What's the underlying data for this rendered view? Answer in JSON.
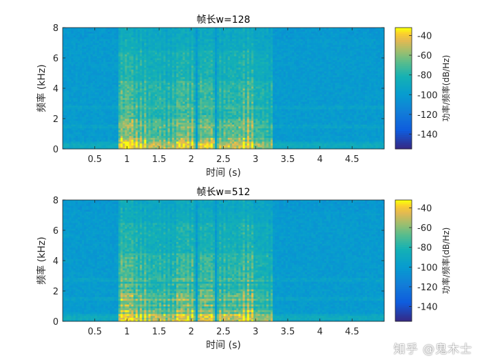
{
  "chart_data": [
    {
      "type": "heatmap",
      "title": "帧长w=128",
      "xlabel": "时间 (s)",
      "ylabel": "频率 (kHz)",
      "x_ticks": [
        "0.5",
        "1",
        "1.5",
        "2",
        "2.5",
        "3",
        "3.5",
        "4",
        "4.5"
      ],
      "x_tick_values": [
        0.5,
        1,
        1.5,
        2,
        2.5,
        3,
        3.5,
        4,
        4.5
      ],
      "y_ticks": [
        "0",
        "2",
        "4",
        "6",
        "8"
      ],
      "y_tick_values": [
        0,
        2,
        4,
        6,
        8
      ],
      "xlim": [
        0,
        5
      ],
      "ylim": [
        0,
        8
      ],
      "colorbar": {
        "label": "功率/频率(dB/Hz)",
        "ticks": [
          "-40",
          "-60",
          "-80",
          "-100",
          "-120",
          "-140"
        ],
        "tick_values": [
          -40,
          -60,
          -80,
          -100,
          -120,
          -140
        ],
        "range": [
          -155,
          -32
        ],
        "colormap": "parula"
      },
      "speech_segments": [
        {
          "t_start": 0.88,
          "t_end": 1.1,
          "strength": 1.0
        },
        {
          "t_start": 1.1,
          "t_end": 1.3,
          "strength": 0.85
        },
        {
          "t_start": 1.3,
          "t_end": 1.75,
          "strength": 0.7
        },
        {
          "t_start": 1.78,
          "t_end": 2.05,
          "strength": 0.9
        },
        {
          "t_start": 2.1,
          "t_end": 2.35,
          "strength": 0.85
        },
        {
          "t_start": 2.4,
          "t_end": 2.75,
          "strength": 0.75
        },
        {
          "t_start": 2.78,
          "t_end": 2.95,
          "strength": 0.95
        },
        {
          "t_start": 2.95,
          "t_end": 3.25,
          "strength": 0.6
        }
      ],
      "background_db": -100,
      "noise_bands_khz": [
        0.3,
        1.5,
        2.8
      ]
    },
    {
      "type": "heatmap",
      "title": "帧长w=512",
      "xlabel": "时间 (s)",
      "ylabel": "频率 (kHz)",
      "x_ticks": [
        "0.5",
        "1",
        "1.5",
        "2",
        "2.5",
        "3",
        "3.5",
        "4",
        "4.5"
      ],
      "x_tick_values": [
        0.5,
        1,
        1.5,
        2,
        2.5,
        3,
        3.5,
        4,
        4.5
      ],
      "y_ticks": [
        "0",
        "2",
        "4",
        "6",
        "8"
      ],
      "y_tick_values": [
        0,
        2,
        4,
        6,
        8
      ],
      "xlim": [
        0,
        5
      ],
      "ylim": [
        0,
        8
      ],
      "colorbar": {
        "label": "功率/频率(dB/Hz)",
        "ticks": [
          "-40",
          "-60",
          "-80",
          "-100",
          "-120",
          "-140"
        ],
        "tick_values": [
          -40,
          -60,
          -80,
          -100,
          -120,
          -140
        ],
        "range": [
          -155,
          -32
        ],
        "colormap": "parula"
      },
      "speech_segments": [
        {
          "t_start": 0.88,
          "t_end": 1.1,
          "strength": 1.0
        },
        {
          "t_start": 1.1,
          "t_end": 1.3,
          "strength": 0.85
        },
        {
          "t_start": 1.3,
          "t_end": 1.75,
          "strength": 0.7
        },
        {
          "t_start": 1.78,
          "t_end": 2.05,
          "strength": 0.9
        },
        {
          "t_start": 2.1,
          "t_end": 2.35,
          "strength": 0.85
        },
        {
          "t_start": 2.4,
          "t_end": 2.75,
          "strength": 0.75
        },
        {
          "t_start": 2.78,
          "t_end": 2.95,
          "strength": 0.95
        },
        {
          "t_start": 2.95,
          "t_end": 3.25,
          "strength": 0.6
        }
      ],
      "background_db": -100,
      "noise_bands_khz": [
        0.3,
        1.5,
        2.8
      ]
    }
  ],
  "watermark": "知乎 @鬼木士"
}
